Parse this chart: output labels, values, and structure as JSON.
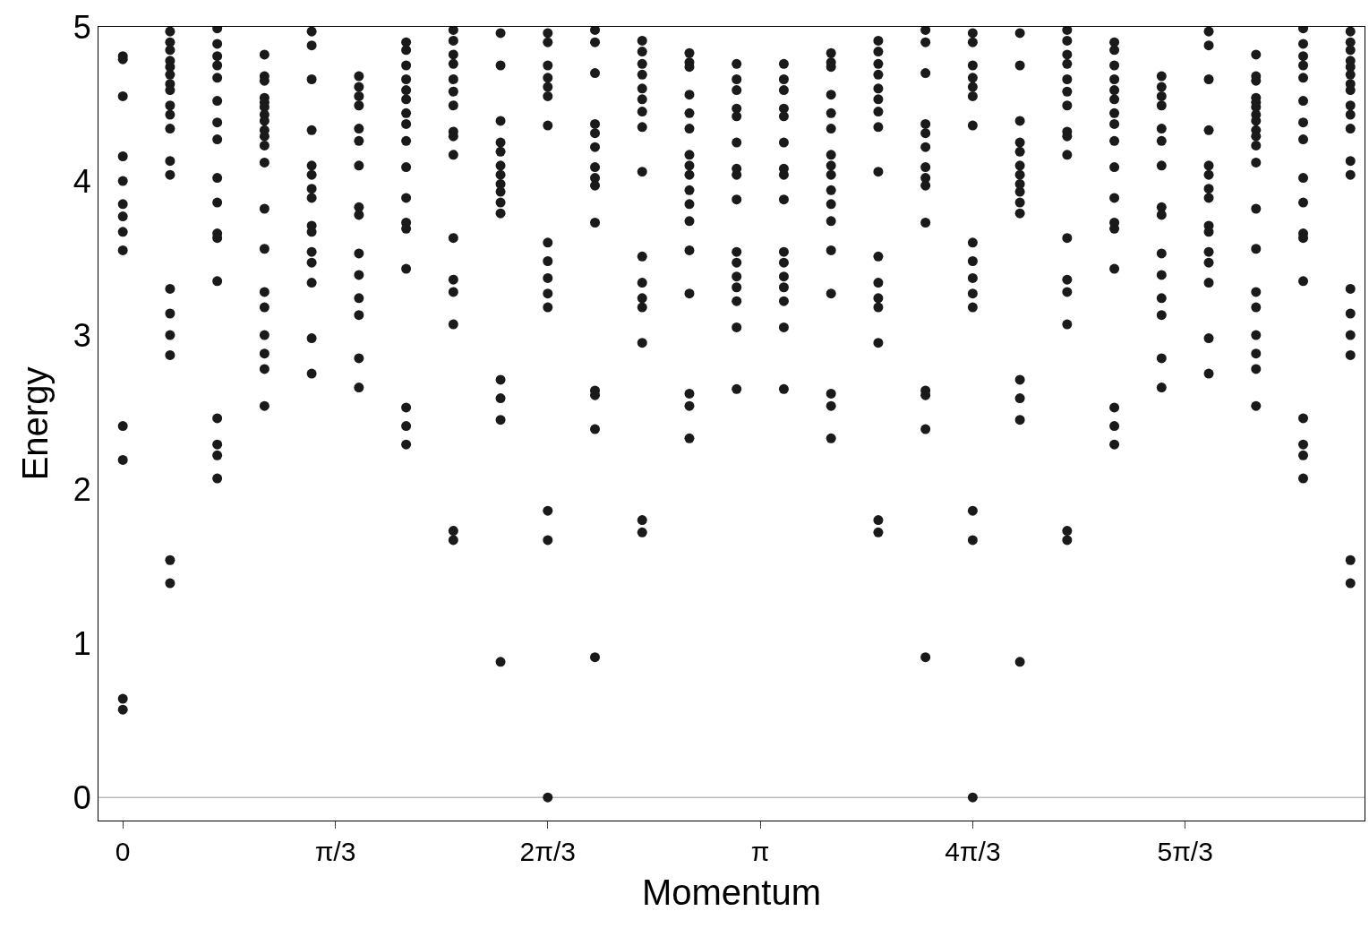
{
  "chart_data": {
    "type": "scatter",
    "xlabel": "Momentum",
    "ylabel": "Energy",
    "color": "#1a1a1a",
    "marker": "circle",
    "xlim": [
      -0.12,
      6.12
    ],
    "ylim": [
      -0.15,
      5
    ],
    "xticks": [
      0,
      {
        "value": 1.0472,
        "label": "π/3"
      },
      {
        "value": 2.0944,
        "label": "2π/3"
      },
      {
        "value": 3.1416,
        "label": "π"
      },
      {
        "value": 4.1888,
        "label": "4π/3"
      },
      {
        "value": 5.236,
        "label": "5π/3"
      }
    ],
    "yticks": [
      0,
      1,
      2,
      3,
      4,
      5
    ],
    "ref_lines": [
      {
        "axis": "y",
        "value": 0,
        "color": "#999999"
      }
    ],
    "series": [
      {
        "x": [
          0,
          0,
          0,
          0,
          0,
          0,
          0,
          0,
          0,
          0,
          0,
          0,
          0
        ],
        "values": [
          4.81,
          4.79,
          4.55,
          4.16,
          4.0,
          3.85,
          3.77,
          3.67,
          3.55,
          2.41,
          2.19,
          0.64,
          0.57
        ]
      },
      {
        "x": [
          0.2327,
          0.2327,
          0.2327,
          0.2327,
          0.2327,
          0.2327,
          0.2327,
          0.2327,
          0.2327,
          0.2327,
          0.2327,
          0.2327,
          0.2327,
          0.2327,
          0.2327,
          0.2327,
          0.2327,
          0.2327,
          0.2327
        ],
        "values": [
          4.97,
          4.9,
          4.85,
          4.78,
          4.74,
          4.69,
          4.63,
          4.59,
          4.49,
          4.43,
          4.34,
          4.13,
          4.04,
          3.3,
          3.14,
          3.0,
          2.87,
          1.54,
          1.39
        ]
      },
      {
        "x": [
          0.4654,
          0.4654,
          0.4654,
          0.4654,
          0.4654,
          0.4654,
          0.4654,
          0.4654,
          0.4654,
          0.4654,
          0.4654,
          0.4654,
          0.4654,
          0.4654,
          0.4654,
          0.4654,
          0.4654
        ],
        "values": [
          4.99,
          4.89,
          4.81,
          4.75,
          4.67,
          4.52,
          4.38,
          4.27,
          4.02,
          3.86,
          3.66,
          3.63,
          3.35,
          2.46,
          2.29,
          2.22,
          2.07
        ]
      },
      {
        "x": [
          0.6981,
          0.6981,
          0.6981,
          0.6981,
          0.6981,
          0.6981,
          0.6981,
          0.6981,
          0.6981,
          0.6981,
          0.6981,
          0.6981,
          0.6981,
          0.6981,
          0.6981,
          0.6981,
          0.6981,
          0.6981,
          0.6981,
          0.6981
        ],
        "values": [
          4.82,
          4.68,
          4.65,
          4.54,
          4.51,
          4.48,
          4.43,
          4.39,
          4.33,
          4.29,
          4.23,
          4.12,
          3.82,
          3.56,
          3.28,
          3.18,
          3.0,
          2.88,
          2.78,
          2.54
        ]
      },
      {
        "x": [
          0.9308,
          0.9308,
          0.9308,
          0.9308,
          0.9308,
          0.9308,
          0.9308,
          0.9308,
          0.9308,
          0.9308,
          0.9308,
          0.9308,
          0.9308,
          0.9308,
          0.9308
        ],
        "values": [
          4.97,
          4.88,
          4.66,
          4.33,
          4.1,
          4.04,
          3.95,
          3.89,
          3.71,
          3.67,
          3.54,
          3.47,
          3.34,
          2.98,
          2.75
        ]
      },
      {
        "x": [
          1.1636,
          1.1636,
          1.1636,
          1.1636,
          1.1636,
          1.1636,
          1.1636,
          1.1636,
          1.1636,
          1.1636,
          1.1636,
          1.1636,
          1.1636,
          1.1636,
          1.1636
        ],
        "values": [
          4.68,
          4.61,
          4.55,
          4.49,
          4.34,
          4.26,
          4.1,
          3.83,
          3.78,
          3.53,
          3.39,
          3.24,
          3.13,
          2.85,
          2.66
        ]
      },
      {
        "x": [
          1.3963,
          1.3963,
          1.3963,
          1.3963,
          1.3963,
          1.3963,
          1.3963,
          1.3963,
          1.3963,
          1.3963,
          1.3963,
          1.3963,
          1.3963,
          1.3963,
          1.3963,
          1.3963,
          1.3963
        ],
        "values": [
          4.9,
          4.85,
          4.75,
          4.66,
          4.59,
          4.53,
          4.44,
          4.37,
          4.26,
          4.09,
          3.89,
          3.73,
          3.69,
          3.43,
          2.53,
          2.41,
          2.29
        ]
      },
      {
        "x": [
          1.629,
          1.629,
          1.629,
          1.629,
          1.629,
          1.629,
          1.629,
          1.629,
          1.629,
          1.629,
          1.629,
          1.629,
          1.629,
          1.629,
          1.629,
          1.629
        ],
        "values": [
          4.98,
          4.91,
          4.82,
          4.76,
          4.66,
          4.58,
          4.49,
          4.32,
          4.29,
          4.17,
          3.63,
          3.36,
          3.28,
          3.07,
          1.73,
          1.67
        ]
      },
      {
        "x": [
          1.8617,
          1.8617,
          1.8617,
          1.8617,
          1.8617,
          1.8617,
          1.8617,
          1.8617,
          1.8617,
          1.8617,
          1.8617,
          1.8617,
          1.8617,
          1.8617,
          1.8617
        ],
        "values": [
          4.96,
          4.75,
          4.39,
          4.25,
          4.19,
          4.1,
          4.04,
          3.98,
          3.93,
          3.86,
          3.79,
          2.71,
          2.59,
          2.45,
          0.88
        ]
      },
      {
        "x": [
          2.0944,
          2.0944,
          2.0944,
          2.0944,
          2.0944,
          2.0944,
          2.0944,
          2.0944,
          2.0944,
          2.0944,
          2.0944,
          2.0944,
          2.0944,
          2.0944,
          2.0944
        ],
        "values": [
          4.96,
          4.9,
          4.75,
          4.67,
          4.61,
          4.55,
          4.36,
          3.6,
          3.48,
          3.37,
          3.27,
          3.18,
          1.86,
          1.67,
          0.0
        ]
      },
      {
        "x": [
          2.3271,
          2.3271,
          2.3271,
          2.3271,
          2.3271,
          2.3271,
          2.3271,
          2.3271,
          2.3271,
          2.3271,
          2.3271,
          2.3271,
          2.3271,
          2.3271
        ],
        "values": [
          4.98,
          4.9,
          4.7,
          4.37,
          4.31,
          4.22,
          4.09,
          4.02,
          3.97,
          3.73,
          2.64,
          2.61,
          2.39,
          0.91
        ]
      },
      {
        "x": [
          2.5598,
          2.5598,
          2.5598,
          2.5598,
          2.5598,
          2.5598,
          2.5598,
          2.5598,
          2.5598,
          2.5598,
          2.5598,
          2.5598,
          2.5598,
          2.5598,
          2.5598,
          2.5598
        ],
        "values": [
          4.91,
          4.84,
          4.76,
          4.69,
          4.6,
          4.53,
          4.45,
          4.35,
          4.06,
          3.51,
          3.34,
          3.24,
          3.18,
          2.95,
          1.8,
          1.72
        ]
      },
      {
        "x": [
          2.7925,
          2.7925,
          2.7925,
          2.7925,
          2.7925,
          2.7925,
          2.7925,
          2.7925,
          2.7925,
          2.7925,
          2.7925,
          2.7925,
          2.7925,
          2.7925,
          2.7925,
          2.7925,
          2.7925
        ],
        "values": [
          4.83,
          4.77,
          4.74,
          4.56,
          4.44,
          4.34,
          4.17,
          4.1,
          4.04,
          3.94,
          3.85,
          3.74,
          3.55,
          3.27,
          2.62,
          2.54,
          2.33
        ]
      },
      {
        "x": [
          3.0252,
          3.0252,
          3.0252,
          3.0252,
          3.0252,
          3.0252,
          3.0252,
          3.0252,
          3.0252,
          3.0252,
          3.0252,
          3.0252,
          3.0252,
          3.0252,
          3.0252,
          3.0252
        ],
        "values": [
          4.76,
          4.66,
          4.59,
          4.47,
          4.42,
          4.25,
          4.08,
          4.04,
          3.88,
          3.54,
          3.47,
          3.38,
          3.31,
          3.22,
          3.05,
          2.65
        ]
      },
      {
        "x": [
          3.2579,
          3.2579,
          3.2579,
          3.2579,
          3.2579,
          3.2579,
          3.2579,
          3.2579,
          3.2579,
          3.2579,
          3.2579,
          3.2579,
          3.2579,
          3.2579,
          3.2579,
          3.2579
        ],
        "values": [
          4.76,
          4.66,
          4.59,
          4.47,
          4.42,
          4.25,
          4.08,
          4.04,
          3.88,
          3.54,
          3.47,
          3.38,
          3.31,
          3.22,
          3.05,
          2.65
        ]
      },
      {
        "x": [
          3.4907,
          3.4907,
          3.4907,
          3.4907,
          3.4907,
          3.4907,
          3.4907,
          3.4907,
          3.4907,
          3.4907,
          3.4907,
          3.4907,
          3.4907,
          3.4907,
          3.4907,
          3.4907,
          3.4907
        ],
        "values": [
          4.83,
          4.77,
          4.74,
          4.56,
          4.44,
          4.34,
          4.17,
          4.1,
          4.04,
          3.94,
          3.85,
          3.74,
          3.55,
          3.27,
          2.62,
          2.54,
          2.33
        ]
      },
      {
        "x": [
          3.7234,
          3.7234,
          3.7234,
          3.7234,
          3.7234,
          3.7234,
          3.7234,
          3.7234,
          3.7234,
          3.7234,
          3.7234,
          3.7234,
          3.7234,
          3.7234,
          3.7234,
          3.7234
        ],
        "values": [
          4.91,
          4.84,
          4.76,
          4.69,
          4.6,
          4.53,
          4.45,
          4.35,
          4.06,
          3.51,
          3.34,
          3.24,
          3.18,
          2.95,
          1.8,
          1.72
        ]
      },
      {
        "x": [
          3.9561,
          3.9561,
          3.9561,
          3.9561,
          3.9561,
          3.9561,
          3.9561,
          3.9561,
          3.9561,
          3.9561,
          3.9561,
          3.9561,
          3.9561,
          3.9561
        ],
        "values": [
          4.98,
          4.9,
          4.7,
          4.37,
          4.31,
          4.22,
          4.09,
          4.02,
          3.97,
          3.73,
          2.64,
          2.61,
          2.39,
          0.91
        ]
      },
      {
        "x": [
          4.1888,
          4.1888,
          4.1888,
          4.1888,
          4.1888,
          4.1888,
          4.1888,
          4.1888,
          4.1888,
          4.1888,
          4.1888,
          4.1888,
          4.1888,
          4.1888,
          4.1888
        ],
        "values": [
          4.96,
          4.9,
          4.75,
          4.67,
          4.61,
          4.55,
          4.36,
          3.6,
          3.48,
          3.37,
          3.27,
          3.18,
          1.86,
          1.67,
          0.0
        ]
      },
      {
        "x": [
          4.4215,
          4.4215,
          4.4215,
          4.4215,
          4.4215,
          4.4215,
          4.4215,
          4.4215,
          4.4215,
          4.4215,
          4.4215,
          4.4215,
          4.4215,
          4.4215,
          4.4215
        ],
        "values": [
          4.96,
          4.75,
          4.39,
          4.25,
          4.19,
          4.1,
          4.04,
          3.98,
          3.93,
          3.86,
          3.79,
          2.71,
          2.59,
          2.45,
          0.88
        ]
      },
      {
        "x": [
          4.6542,
          4.6542,
          4.6542,
          4.6542,
          4.6542,
          4.6542,
          4.6542,
          4.6542,
          4.6542,
          4.6542,
          4.6542,
          4.6542,
          4.6542,
          4.6542,
          4.6542,
          4.6542
        ],
        "values": [
          4.98,
          4.91,
          4.82,
          4.76,
          4.66,
          4.58,
          4.49,
          4.32,
          4.29,
          4.17,
          3.63,
          3.36,
          3.28,
          3.07,
          1.73,
          1.67
        ]
      },
      {
        "x": [
          4.8869,
          4.8869,
          4.8869,
          4.8869,
          4.8869,
          4.8869,
          4.8869,
          4.8869,
          4.8869,
          4.8869,
          4.8869,
          4.8869,
          4.8869,
          4.8869,
          4.8869,
          4.8869,
          4.8869
        ],
        "values": [
          4.9,
          4.85,
          4.75,
          4.66,
          4.59,
          4.53,
          4.44,
          4.37,
          4.26,
          4.09,
          3.89,
          3.73,
          3.69,
          3.43,
          2.53,
          2.41,
          2.29
        ]
      },
      {
        "x": [
          5.1196,
          5.1196,
          5.1196,
          5.1196,
          5.1196,
          5.1196,
          5.1196,
          5.1196,
          5.1196,
          5.1196,
          5.1196,
          5.1196,
          5.1196,
          5.1196,
          5.1196
        ],
        "values": [
          4.68,
          4.61,
          4.55,
          4.49,
          4.34,
          4.26,
          4.1,
          3.83,
          3.78,
          3.53,
          3.39,
          3.24,
          3.13,
          2.85,
          2.66
        ]
      },
      {
        "x": [
          5.3523,
          5.3523,
          5.3523,
          5.3523,
          5.3523,
          5.3523,
          5.3523,
          5.3523,
          5.3523,
          5.3523,
          5.3523,
          5.3523,
          5.3523,
          5.3523,
          5.3523
        ],
        "values": [
          4.97,
          4.88,
          4.66,
          4.33,
          4.1,
          4.04,
          3.95,
          3.89,
          3.71,
          3.67,
          3.54,
          3.47,
          3.34,
          2.98,
          2.75
        ]
      },
      {
        "x": [
          5.5851,
          5.5851,
          5.5851,
          5.5851,
          5.5851,
          5.5851,
          5.5851,
          5.5851,
          5.5851,
          5.5851,
          5.5851,
          5.5851,
          5.5851,
          5.5851,
          5.5851,
          5.5851,
          5.5851,
          5.5851,
          5.5851,
          5.5851
        ],
        "values": [
          4.82,
          4.68,
          4.65,
          4.54,
          4.51,
          4.48,
          4.43,
          4.39,
          4.33,
          4.29,
          4.23,
          4.12,
          3.82,
          3.56,
          3.28,
          3.18,
          3.0,
          2.88,
          2.78,
          2.54
        ]
      },
      {
        "x": [
          5.8178,
          5.8178,
          5.8178,
          5.8178,
          5.8178,
          5.8178,
          5.8178,
          5.8178,
          5.8178,
          5.8178,
          5.8178,
          5.8178,
          5.8178,
          5.8178,
          5.8178,
          5.8178,
          5.8178
        ],
        "values": [
          4.99,
          4.89,
          4.81,
          4.75,
          4.67,
          4.52,
          4.38,
          4.27,
          4.02,
          3.86,
          3.66,
          3.63,
          3.35,
          2.46,
          2.29,
          2.22,
          2.07
        ]
      },
      {
        "x": [
          6.0505,
          6.0505,
          6.0505,
          6.0505,
          6.0505,
          6.0505,
          6.0505,
          6.0505,
          6.0505,
          6.0505,
          6.0505,
          6.0505,
          6.0505,
          6.0505,
          6.0505,
          6.0505,
          6.0505,
          6.0505,
          6.0505
        ],
        "values": [
          4.97,
          4.9,
          4.85,
          4.78,
          4.74,
          4.69,
          4.63,
          4.59,
          4.49,
          4.43,
          4.34,
          4.13,
          4.04,
          3.3,
          3.14,
          3.0,
          2.87,
          1.54,
          1.39
        ]
      }
    ]
  }
}
